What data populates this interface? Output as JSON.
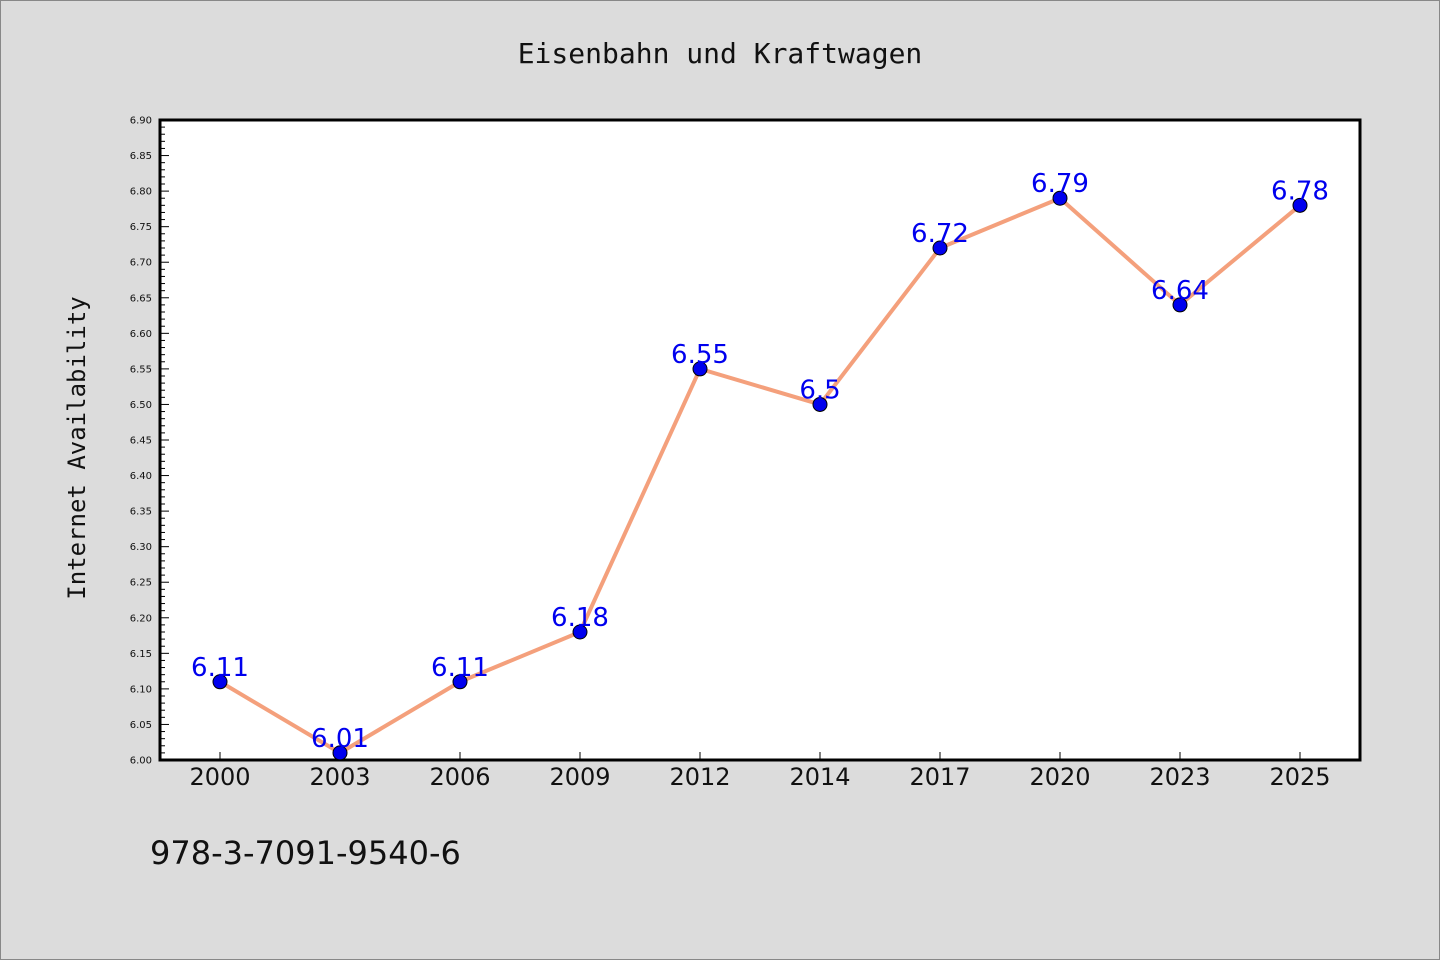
{
  "chart_data": {
    "type": "line",
    "title": "Eisenbahn und Kraftwagen",
    "xlabel": "",
    "ylabel": "Internet Availability",
    "categories": [
      "2000",
      "2003",
      "2006",
      "2009",
      "2012",
      "2014",
      "2017",
      "2020",
      "2023",
      "2025"
    ],
    "series": [
      {
        "values": [
          6.11,
          6.01,
          6.11,
          6.18,
          6.55,
          6.5,
          6.72,
          6.79,
          6.64,
          6.78
        ]
      }
    ],
    "data_labels": [
      "6.11",
      "6.01",
      "6.11",
      "6.18",
      "6.55",
      "6.5",
      "6.72",
      "6.79",
      "6.64",
      "6.78"
    ],
    "ylim": [
      6.0,
      6.9
    ],
    "yticks": [
      "6.00",
      "6.05",
      "6.10",
      "6.15",
      "6.20",
      "6.25",
      "6.30",
      "6.35",
      "6.40",
      "6.45",
      "6.50",
      "6.55",
      "6.60",
      "6.65",
      "6.70",
      "6.75",
      "6.80",
      "6.85",
      "6.90"
    ],
    "grid": false,
    "colors": {
      "line": "#f4a07c",
      "marker": "#0000ee",
      "label": "#0000ee"
    }
  },
  "footer_text": "978-3-7091-9540-6"
}
